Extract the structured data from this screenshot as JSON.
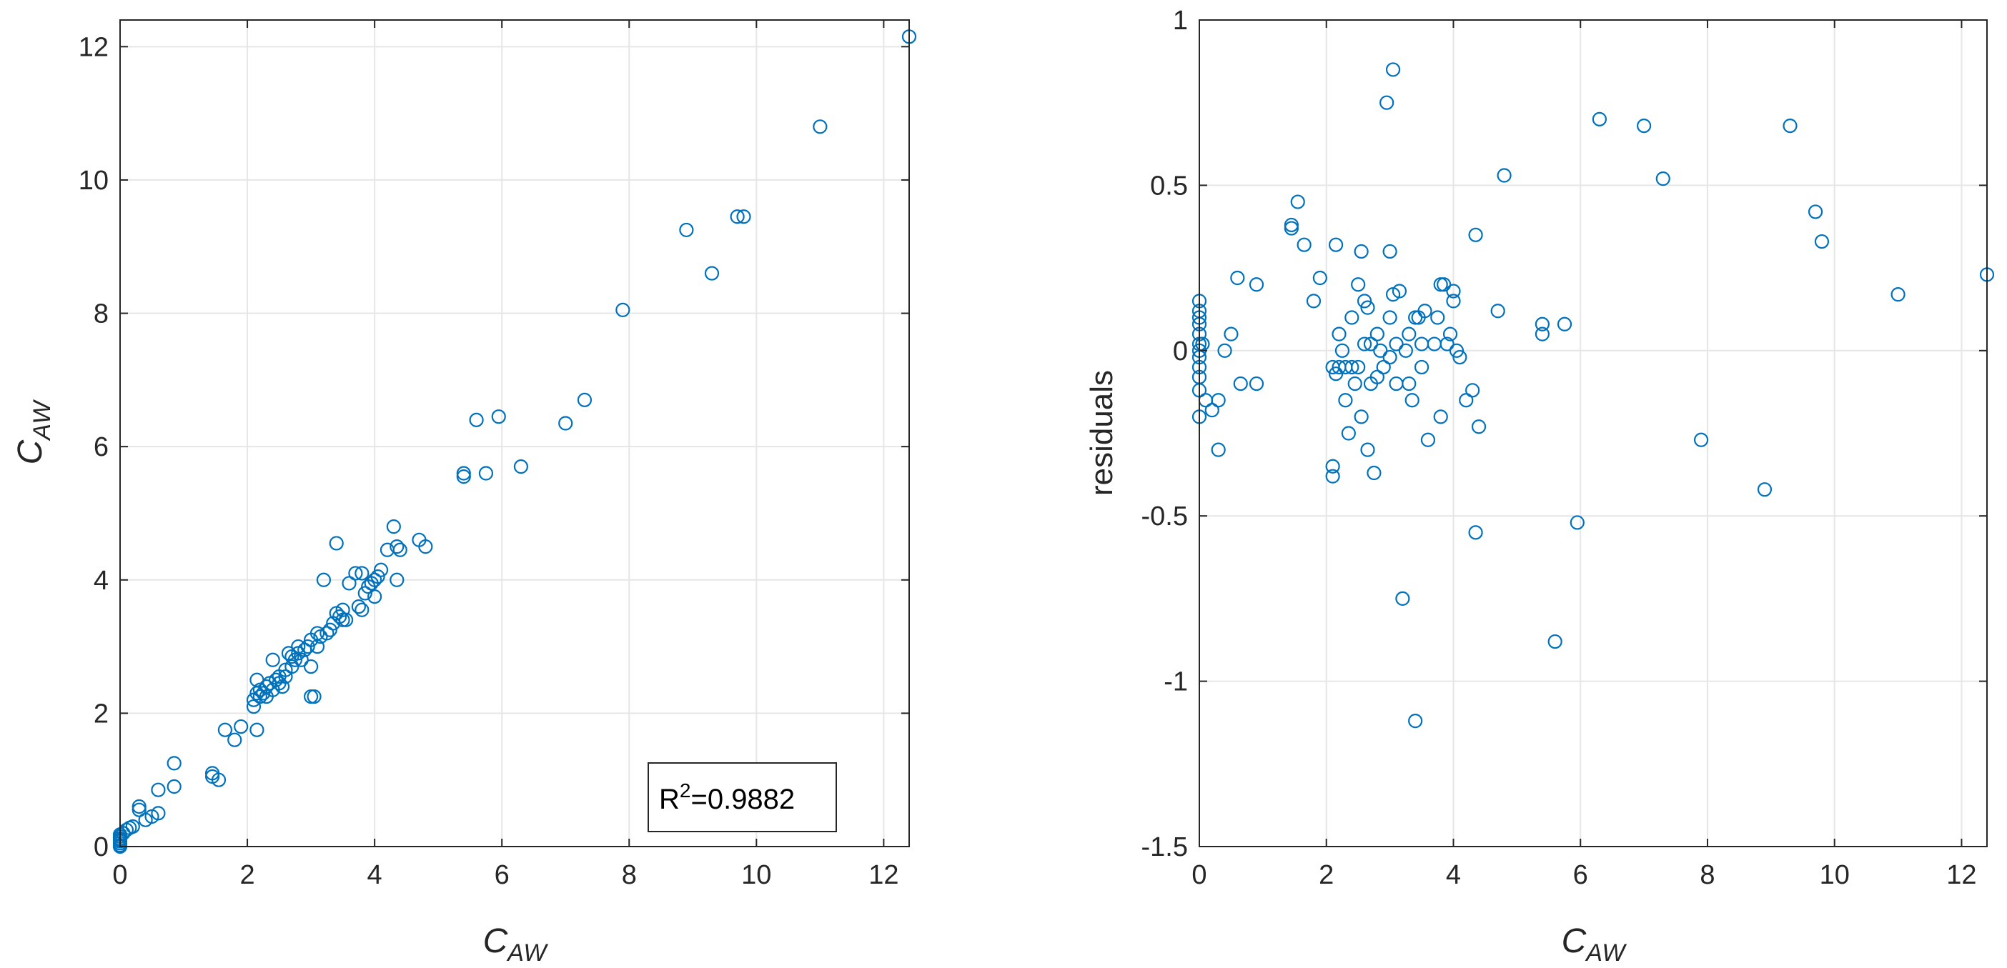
{
  "figure": {
    "marker_color": "#0072BD",
    "axis_color": "#262626",
    "grid_color": "#E6E6E6"
  },
  "chart_data": [
    {
      "type": "scatter",
      "title": "",
      "xlabel": {
        "main": "C",
        "sub": "AW"
      },
      "ylabel": {
        "main": "C",
        "sub": "AW"
      },
      "xlim": [
        0,
        12.4
      ],
      "ylim": [
        0,
        12.4
      ],
      "xticks": [
        0,
        2,
        4,
        6,
        8,
        10,
        12
      ],
      "yticks": [
        0,
        2,
        4,
        6,
        8,
        10,
        12
      ],
      "grid": true,
      "marker": "circle-open",
      "annotation": {
        "prefix": "R",
        "sup": "2",
        "value": "=0.9882",
        "placement": "bottom-right"
      },
      "x": [
        0,
        0,
        0,
        0,
        0,
        0,
        0,
        0,
        0.05,
        0.1,
        0.15,
        0.2,
        0.3,
        0.3,
        0.4,
        0.5,
        0.6,
        0.6,
        0.85,
        0.85,
        1.45,
        1.45,
        1.55,
        1.65,
        1.8,
        1.9,
        2.1,
        2.1,
        2.15,
        2.15,
        2.15,
        2.2,
        2.2,
        2.25,
        2.3,
        2.3,
        2.35,
        2.4,
        2.4,
        2.45,
        2.5,
        2.5,
        2.55,
        2.6,
        2.6,
        2.65,
        2.7,
        2.7,
        2.75,
        2.8,
        2.8,
        2.85,
        2.9,
        2.95,
        3.0,
        3.0,
        3.0,
        3.05,
        3.1,
        3.1,
        3.15,
        3.2,
        3.25,
        3.3,
        3.35,
        3.4,
        3.4,
        3.45,
        3.5,
        3.5,
        3.55,
        3.6,
        3.7,
        3.75,
        3.8,
        3.8,
        3.85,
        3.9,
        3.95,
        4.0,
        4.0,
        4.05,
        4.1,
        4.2,
        4.3,
        4.35,
        4.35,
        4.4,
        4.7,
        4.8,
        5.4,
        5.4,
        5.6,
        5.75,
        5.95,
        6.3,
        7.0,
        7.3,
        7.9,
        8.9,
        9.3,
        9.7,
        9.8,
        11.0,
        12.4
      ],
      "y": [
        0,
        0.02,
        0.05,
        0.08,
        0.1,
        0.12,
        0.15,
        0.18,
        0.2,
        0.25,
        0.28,
        0.3,
        0.55,
        0.6,
        0.4,
        0.45,
        0.5,
        0.85,
        0.9,
        1.25,
        1.1,
        1.05,
        1.0,
        1.75,
        1.6,
        1.8,
        2.1,
        2.2,
        2.3,
        2.5,
        1.75,
        2.25,
        2.35,
        2.3,
        2.4,
        2.25,
        2.45,
        2.35,
        2.8,
        2.5,
        2.45,
        2.55,
        2.4,
        2.55,
        2.65,
        2.9,
        2.7,
        2.85,
        2.8,
        2.9,
        3.0,
        2.8,
        2.95,
        3.0,
        2.7,
        2.25,
        3.1,
        2.25,
        3.0,
        3.2,
        3.15,
        4.0,
        3.2,
        3.25,
        3.35,
        3.5,
        4.55,
        3.45,
        3.4,
        3.55,
        3.4,
        3.95,
        4.1,
        3.6,
        3.55,
        4.1,
        3.8,
        3.9,
        3.95,
        3.75,
        4.0,
        4.05,
        4.15,
        4.45,
        4.8,
        4.0,
        4.5,
        4.45,
        4.6,
        4.5,
        5.55,
        5.6,
        6.4,
        5.6,
        6.45,
        5.7,
        6.35,
        6.7,
        8.05,
        9.25,
        8.6,
        9.45,
        9.45,
        10.8,
        12.15
      ]
    },
    {
      "type": "scatter",
      "title": "",
      "xlabel": {
        "main": "C",
        "sub": "AW"
      },
      "ylabel": "residuals",
      "xlim": [
        0,
        12.4
      ],
      "ylim": [
        -1.5,
        1
      ],
      "xticks": [
        0,
        2,
        4,
        6,
        8,
        10,
        12
      ],
      "yticks": [
        -1.5,
        -1,
        -0.5,
        0,
        0.5,
        1
      ],
      "grid": true,
      "marker": "circle-open",
      "x": [
        0,
        0,
        0,
        0,
        0,
        0,
        0,
        0,
        0,
        0,
        0,
        0,
        0.05,
        0.1,
        0.2,
        0.3,
        0.3,
        0.4,
        0.5,
        0.6,
        0.65,
        0.9,
        0.9,
        1.45,
        1.45,
        1.55,
        1.65,
        1.8,
        1.9,
        2.1,
        2.1,
        2.1,
        2.15,
        2.15,
        2.2,
        2.2,
        2.25,
        2.3,
        2.3,
        2.35,
        2.4,
        2.4,
        2.45,
        2.5,
        2.5,
        2.55,
        2.55,
        2.6,
        2.6,
        2.65,
        2.65,
        2.7,
        2.7,
        2.75,
        2.8,
        2.8,
        2.85,
        2.9,
        2.95,
        3.0,
        3.0,
        3.0,
        3.05,
        3.05,
        3.1,
        3.1,
        3.15,
        3.2,
        3.25,
        3.3,
        3.3,
        3.35,
        3.4,
        3.4,
        3.45,
        3.5,
        3.5,
        3.55,
        3.6,
        3.7,
        3.75,
        3.8,
        3.8,
        3.85,
        3.9,
        3.95,
        4.0,
        4.0,
        4.05,
        4.1,
        4.2,
        4.3,
        4.35,
        4.35,
        4.4,
        4.7,
        4.8,
        5.4,
        5.4,
        5.6,
        5.75,
        5.95,
        6.3,
        7.0,
        7.3,
        7.9,
        8.9,
        9.3,
        9.7,
        9.8,
        11.0,
        12.4
      ],
      "y": [
        0.15,
        0.12,
        0.1,
        0.08,
        0.05,
        0.02,
        0,
        -0.02,
        -0.05,
        -0.08,
        -0.12,
        -0.2,
        0.02,
        -0.15,
        -0.18,
        -0.3,
        -0.15,
        0,
        0.05,
        0.22,
        -0.1,
        0.2,
        -0.1,
        0.38,
        0.37,
        0.45,
        0.32,
        0.15,
        0.22,
        -0.05,
        -0.35,
        -0.38,
        0.32,
        -0.07,
        -0.05,
        0.05,
        0,
        -0.05,
        -0.15,
        -0.25,
        -0.05,
        0.1,
        -0.1,
        0.2,
        -0.05,
        0.3,
        -0.2,
        0.15,
        0.02,
        0.13,
        -0.3,
        0.02,
        -0.1,
        -0.37,
        -0.08,
        0.05,
        0,
        -0.05,
        0.75,
        0.3,
        0.1,
        -0.02,
        0.17,
        0.85,
        0.02,
        -0.1,
        0.18,
        -0.75,
        0,
        0.05,
        -0.1,
        -0.15,
        0.1,
        -1.12,
        0.1,
        -0.05,
        0.02,
        0.12,
        -0.27,
        0.02,
        0.1,
        -0.2,
        0.2,
        0.2,
        0.02,
        0.05,
        0.18,
        0.15,
        0,
        -0.02,
        -0.15,
        -0.12,
        0.35,
        -0.55,
        -0.23,
        0.12,
        0.53,
        0.08,
        0.05,
        -0.88,
        0.08,
        -0.52,
        0.7,
        0.68,
        0.52,
        -0.27,
        -0.42,
        0.68,
        0.42,
        0.33,
        0.17,
        0.23
      ]
    }
  ]
}
